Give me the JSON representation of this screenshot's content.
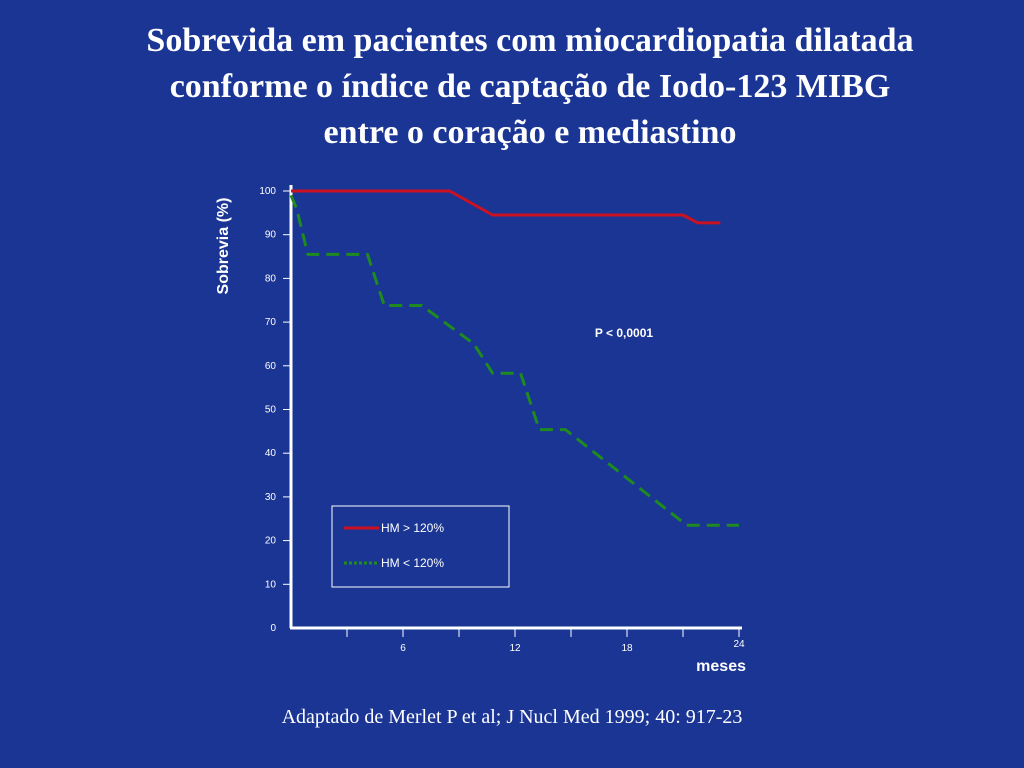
{
  "slide": {
    "title_lines": [
      "Sobrevida em pacientes com miocardiopatia dilatada",
      "conforme o índice de captação de Iodo-123 MIBG",
      "entre o  coração e mediastino"
    ],
    "caption": "Adaptado de Merlet P et al; J Nucl Med 1999; 40: 917-23",
    "background_color": "#1a3594"
  },
  "chart_data": {
    "type": "line",
    "title": "",
    "xlabel": "meses",
    "ylabel": "Sobrevia (%)",
    "xlim": [
      0,
      24
    ],
    "ylim": [
      0,
      100
    ],
    "x_tick_labels": [
      "6",
      "12",
      "18",
      "24"
    ],
    "y_tick_labels": [
      "0",
      "10",
      "20",
      "30",
      "40",
      "50",
      "60",
      "70",
      "80",
      "90",
      "100"
    ],
    "annotation": "P < 0,0001",
    "grid": false,
    "legend_position": "bottom-left",
    "series": [
      {
        "name": "HM > 120%",
        "color": "#cc1122",
        "style": "solid",
        "x": [
          0,
          8.5,
          10.8,
          21,
          21.8,
          23
        ],
        "y": [
          100,
          100,
          94.5,
          94.5,
          92.7,
          92.7
        ]
      },
      {
        "name": "HM < 120%",
        "color": "#1f8a1f",
        "style": "dashed",
        "x": [
          0,
          0.3,
          0.9,
          4.1,
          5.0,
          7.0,
          9.8,
          10.8,
          12.3,
          13.3,
          14.7,
          21.2,
          24
        ],
        "y": [
          99,
          96,
          85.5,
          85.5,
          73.8,
          73.8,
          65,
          58.3,
          58.3,
          45.4,
          45.4,
          23.5,
          23.5
        ]
      }
    ]
  }
}
